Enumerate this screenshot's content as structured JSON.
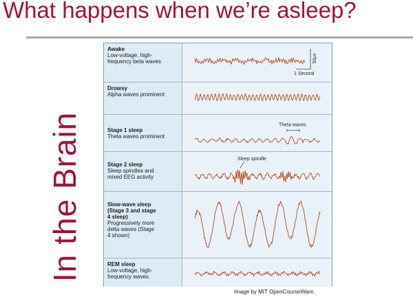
{
  "slide": {
    "title": "What happens when we’re asleep?",
    "side_title": "In the Brain",
    "credit": "Image by MIT OpenCourseWare."
  },
  "figure": {
    "rows": [
      {
        "name": "Awake",
        "desc": "Low-voltage, high-\nfrequency beta waves",
        "wave": "beta"
      },
      {
        "name": "Drowsy",
        "desc": "Alpha waves prominent",
        "wave": "alpha"
      },
      {
        "name": "Stage 1 sleep",
        "desc": "Theta waves prominent",
        "wave": "theta"
      },
      {
        "name": "Stage 2 sleep",
        "desc": "Sleep spindles and\nmixed EEG activity",
        "wave": "spindle"
      },
      {
        "name": "Slow-wave sleep\n(Stage 3 and stage\n4 sleep)",
        "desc": "Progressively more\ndelta waves (Stage\n4 shown)",
        "wave": "delta"
      },
      {
        "name": "REM sleep",
        "desc": "Low-voltage, high-\nfrequency waves",
        "wave": "rem"
      }
    ],
    "annotations": {
      "scale_amplitude": "50μv",
      "scale_time": "1 Second",
      "theta": "Theta waves",
      "spindle": "Sleep spindle"
    },
    "wave_color": "#b5481e"
  }
}
